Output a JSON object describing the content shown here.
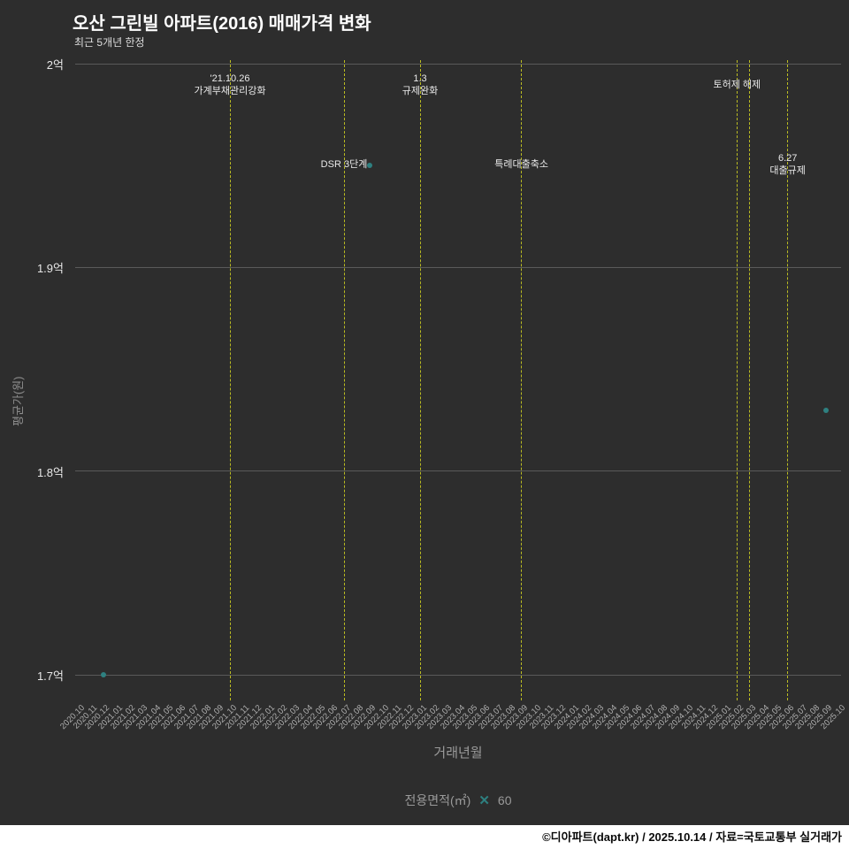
{
  "header": {
    "title": "오산 그린빌 아파트(2016) 매매가격 변화",
    "subtitle": "최근 5개년 한정"
  },
  "chart_data": {
    "type": "scatter",
    "title": "오산 그린빌 아파트(2016) 매매가격 변화",
    "subtitle": "최근 5개년 한정",
    "xlabel": "거래년월",
    "ylabel": "평균가(원)",
    "y_unit": "억원",
    "ylim": [
      1.7,
      2.0
    ],
    "grid": "horizontal",
    "y_ticks": [
      {
        "value": 2.0,
        "label": "2억"
      },
      {
        "value": 1.9,
        "label": "1.9억"
      },
      {
        "value": 1.8,
        "label": "1.8억"
      },
      {
        "value": 1.7,
        "label": "1.7억"
      }
    ],
    "x_categories": [
      "2020.10",
      "2020.11",
      "2020.12",
      "2021.01",
      "2021.02",
      "2021.03",
      "2021.04",
      "2021.05",
      "2021.06",
      "2021.07",
      "2021.08",
      "2021.09",
      "2021.10",
      "2021.11",
      "2021.12",
      "2022.01",
      "2022.02",
      "2022.03",
      "2022.04",
      "2022.05",
      "2022.06",
      "2022.07",
      "2022.08",
      "2022.09",
      "2022.10",
      "2022.11",
      "2022.12",
      "2023.01",
      "2023.02",
      "2023.03",
      "2023.04",
      "2023.05",
      "2023.06",
      "2023.07",
      "2023.08",
      "2023.09",
      "2023.10",
      "2023.11",
      "2023.12",
      "2024.01",
      "2024.02",
      "2024.03",
      "2024.04",
      "2024.05",
      "2024.06",
      "2024.07",
      "2024.08",
      "2024.09",
      "2024.10",
      "2024.11",
      "2024.12",
      "2025.01",
      "2025.02",
      "2025.03",
      "2025.04",
      "2025.05",
      "2025.06",
      "2025.07",
      "2025.08",
      "2025.09",
      "2025.10"
    ],
    "series": [
      {
        "name": "60",
        "marker": "x",
        "color": "#2e8080",
        "points": [
          {
            "x": "2020.12",
            "y": 1.7
          },
          {
            "x": "2022.09",
            "y": 1.95
          },
          {
            "x": "2025.09",
            "y": 1.83
          }
        ]
      }
    ],
    "event_lines": [
      {
        "x": "2021.10",
        "color": "#bcbd22",
        "label_lines": [
          "'21.10.26",
          "가계부채관리강화"
        ],
        "label_row": "top"
      },
      {
        "x": "2022.07",
        "color": "#bcbd22",
        "label_lines": [
          "DSR 3단계"
        ],
        "label_row": "mid"
      },
      {
        "x": "2023.01",
        "color": "#bcbd22",
        "label_lines": [
          "1.3",
          "규제완화"
        ],
        "label_row": "top"
      },
      {
        "x": "2023.09",
        "color": "#bcbd22",
        "label_lines": [
          "특례대출축소"
        ],
        "label_row": "mid"
      },
      {
        "x": "2025.02",
        "color": "#bcbd22",
        "label_lines": [
          "토허제 해제"
        ],
        "label_row": "top"
      },
      {
        "x": "2025.03",
        "color": "#bcbd22",
        "label_lines": [],
        "label_row": "top"
      },
      {
        "x": "2025.06",
        "color": "#bcbd22",
        "label_lines": [
          "6.27",
          "대출규제"
        ],
        "label_row": "mid"
      }
    ]
  },
  "legend": {
    "label": "전용면적(㎡)",
    "marker": "✕",
    "value": "60"
  },
  "footer": {
    "credit": "©디아파트(dapt.kr) / 2025.10.14 / 자료=국토교통부 실거래가"
  }
}
